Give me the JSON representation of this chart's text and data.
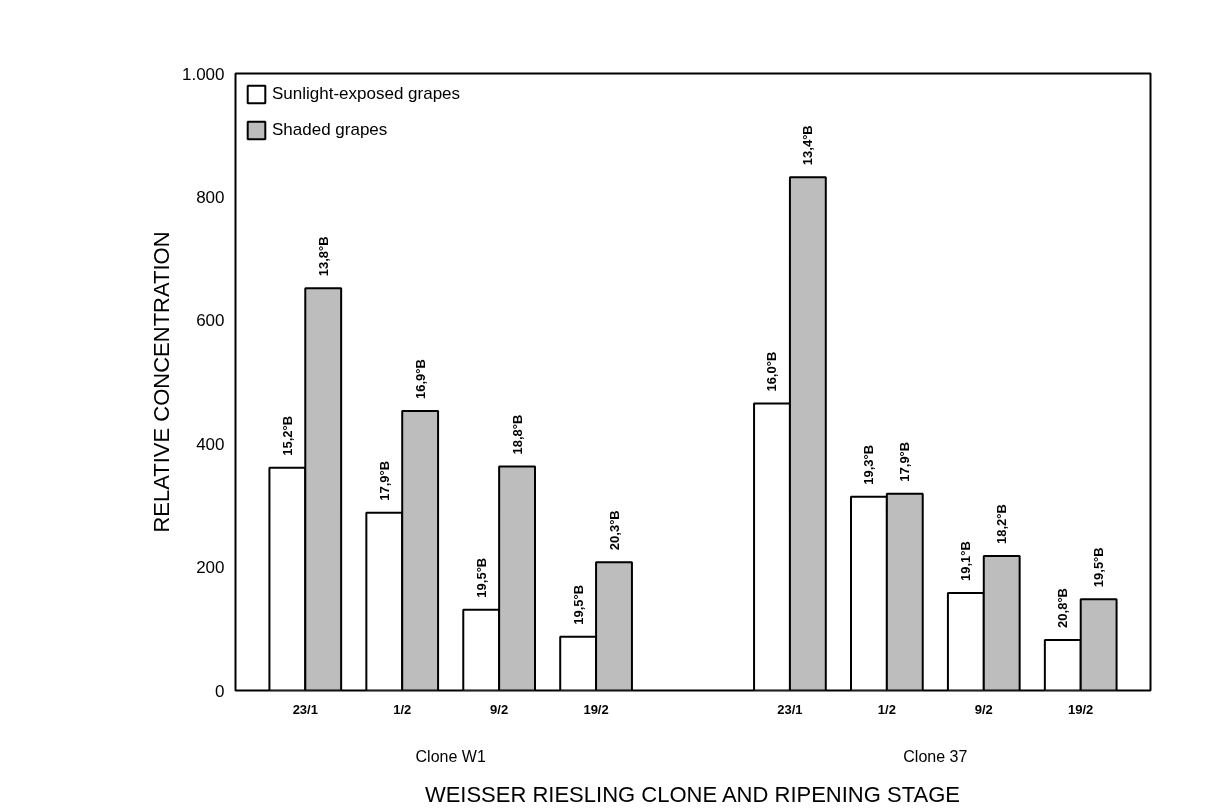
{
  "chart_data": {
    "type": "bar",
    "categories": [
      "23/1",
      "1/2",
      "9/2",
      "19/2",
      null,
      "23/1",
      "1/2",
      "9/2",
      "19/2"
    ],
    "series": [
      {
        "name": "Sunlight-exposed grapes",
        "color": "#ffffff",
        "values": [
          361,
          288,
          131,
          87,
          null,
          465,
          314,
          158,
          82
        ]
      },
      {
        "name": "Shaded grapes",
        "color": "#bdbdbd",
        "values": [
          652,
          453,
          363,
          208,
          null,
          832,
          319,
          218,
          148
        ]
      }
    ],
    "ylabel": "RELATIVE CONCENTRATION",
    "xlabel": "WEISSER RIESLING CLONE AND RIPENING STAGE",
    "annotations": [
      "Clone W1",
      "Clone 37",
      "15,2°B",
      "13,8°B",
      "17,9°B",
      "16,9°B",
      "19,5°B",
      "18,8°B",
      "19,5°B",
      "20,3°B",
      "16,0°B",
      "13,4°B",
      "19,3°B",
      "17,9°B",
      "19,1°B",
      "18,2°B",
      "20,8°B",
      "19,5°B"
    ],
    "ylim": [
      0,
      1000
    ],
    "yticks": [
      0,
      200,
      400,
      600,
      800,
      {
        "value": 1000,
        "label": "1.000"
      }
    ],
    "grid": false,
    "legend": "top left"
  }
}
